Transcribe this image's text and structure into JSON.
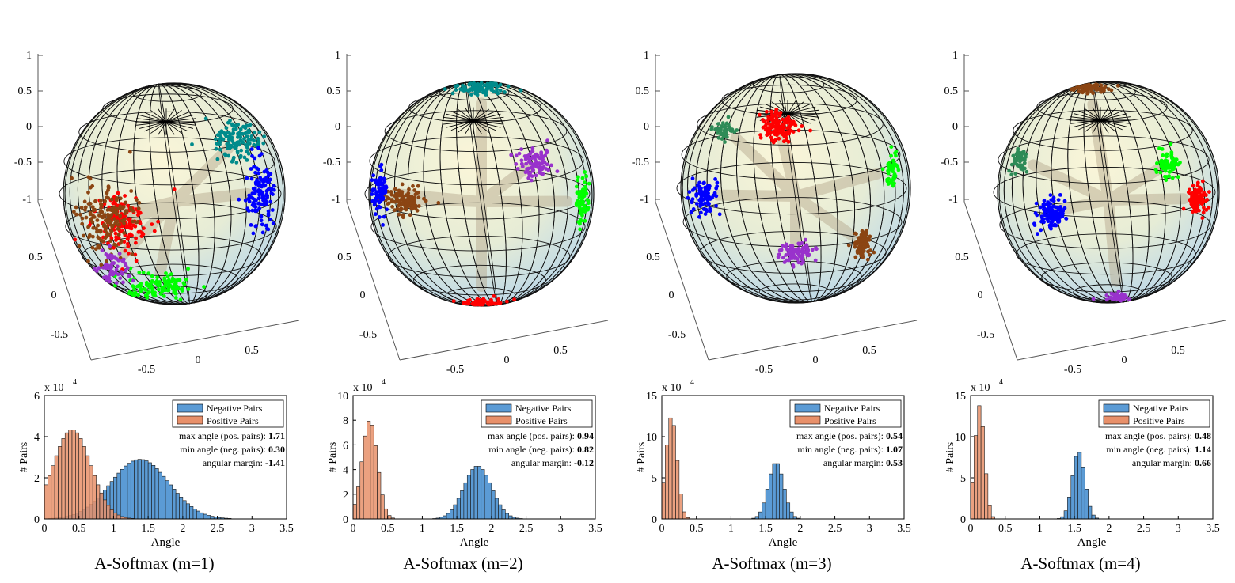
{
  "sphere_axes": {
    "z_ticks": [
      "1",
      "0.5",
      "0",
      "-0.5",
      "-1"
    ],
    "left_ticks": [
      "0.5",
      "0",
      "-0.5"
    ],
    "bottom_ticks": [
      "-0.5",
      "0",
      "0.5"
    ]
  },
  "colors": {
    "negative": "#5b9bd5",
    "positive": "#e8906a",
    "cluster_colors": [
      "#ff0000",
      "#008b8b",
      "#9932cc",
      "#0000ff",
      "#00ff00",
      "#8b4513",
      "#2e8b57"
    ]
  },
  "chart_data": [
    {
      "type": "bar",
      "title": "A-Softmax (m=1)",
      "xlabel": "Angle",
      "ylabel": "# Pairs",
      "multiplier": "x 10",
      "exponent": "4",
      "xlim": [
        0,
        3.5
      ],
      "ylim": [
        0,
        6
      ],
      "xticks": [
        "0",
        "0.5",
        "1",
        "1.5",
        "2",
        "2.5",
        "3",
        "3.5"
      ],
      "yticks": [
        "0",
        "2",
        "4",
        "6"
      ],
      "legend": [
        "Negative Pairs",
        "Positive Pairs"
      ],
      "legend_position": "top-right",
      "annotations": [
        {
          "label": "max angle (pos. pairs): ",
          "value": "1.71"
        },
        {
          "label": "min angle (neg. pairs): ",
          "value": "0.30"
        },
        {
          "label": "angular margin: ",
          "value": "-1.41"
        }
      ],
      "positive": {
        "mean": 0.4,
        "sd": 0.27,
        "peak": 4.35
      },
      "negative": {
        "mean": 1.38,
        "sd": 0.42,
        "peak": 2.9
      }
    },
    {
      "type": "bar",
      "title": "A-Softmax (m=2)",
      "xlabel": "Angle",
      "ylabel": "# Pairs",
      "multiplier": "x 10",
      "exponent": "4",
      "xlim": [
        0,
        3.5
      ],
      "ylim": [
        0,
        10
      ],
      "xticks": [
        "0",
        "0.5",
        "1",
        "1.5",
        "2",
        "2.5",
        "3",
        "3.5"
      ],
      "yticks": [
        "0",
        "2",
        "4",
        "6",
        "8",
        "10"
      ],
      "legend": [
        "Negative Pairs",
        "Positive Pairs"
      ],
      "legend_position": "top-right",
      "annotations": [
        {
          "label": "max angle (pos. pairs): ",
          "value": "0.94"
        },
        {
          "label": "min angle (neg. pairs): ",
          "value": "0.82"
        },
        {
          "label": "angular margin: ",
          "value": "-0.12"
        }
      ],
      "positive": {
        "mean": 0.24,
        "sd": 0.11,
        "peak": 8.0
      },
      "negative": {
        "mean": 1.8,
        "sd": 0.2,
        "peak": 4.3
      }
    },
    {
      "type": "bar",
      "title": "A-Softmax (m=3)",
      "xlabel": "Angle",
      "ylabel": "# Pairs",
      "multiplier": "x 10",
      "exponent": "4",
      "xlim": [
        0,
        3.5
      ],
      "ylim": [
        0,
        15
      ],
      "xticks": [
        "0",
        "0.5",
        "1",
        "1.5",
        "2",
        "2.5",
        "3",
        "3.5"
      ],
      "yticks": [
        "0",
        "5",
        "10",
        "15"
      ],
      "legend": [
        "Negative Pairs",
        "Positive Pairs"
      ],
      "legend_position": "top-right",
      "annotations": [
        {
          "label": "max angle (pos. pairs): ",
          "value": "0.54"
        },
        {
          "label": "min angle (neg. pairs): ",
          "value": "1.07"
        },
        {
          "label": "angular margin: ",
          "value": "0.53"
        }
      ],
      "positive": {
        "mean": 0.14,
        "sd": 0.08,
        "peak": 12.5
      },
      "negative": {
        "mean": 1.65,
        "sd": 0.11,
        "peak": 6.9
      }
    },
    {
      "type": "bar",
      "title": "A-Softmax (m=4)",
      "xlabel": "Angle",
      "ylabel": "# Pairs",
      "multiplier": "x 10",
      "exponent": "4",
      "xlim": [
        0,
        3.5
      ],
      "ylim": [
        0,
        15
      ],
      "xticks": [
        "0",
        "0.5",
        "1",
        "1.5",
        "2",
        "2.5",
        "3",
        "3.5"
      ],
      "yticks": [
        "0",
        "5",
        "10",
        "15"
      ],
      "legend": [
        "Negative Pairs",
        "Positive Pairs"
      ],
      "legend_position": "top-right",
      "annotations": [
        {
          "label": "max angle (pos. pairs): ",
          "value": "0.48"
        },
        {
          "label": "min angle (neg. pairs): ",
          "value": "1.14"
        },
        {
          "label": "angular margin: ",
          "value": "0.66"
        }
      ],
      "positive": {
        "mean": 0.13,
        "sd": 0.07,
        "peak": 13.8
      },
      "negative": {
        "mean": 1.56,
        "sd": 0.09,
        "peak": 8.2
      }
    }
  ]
}
